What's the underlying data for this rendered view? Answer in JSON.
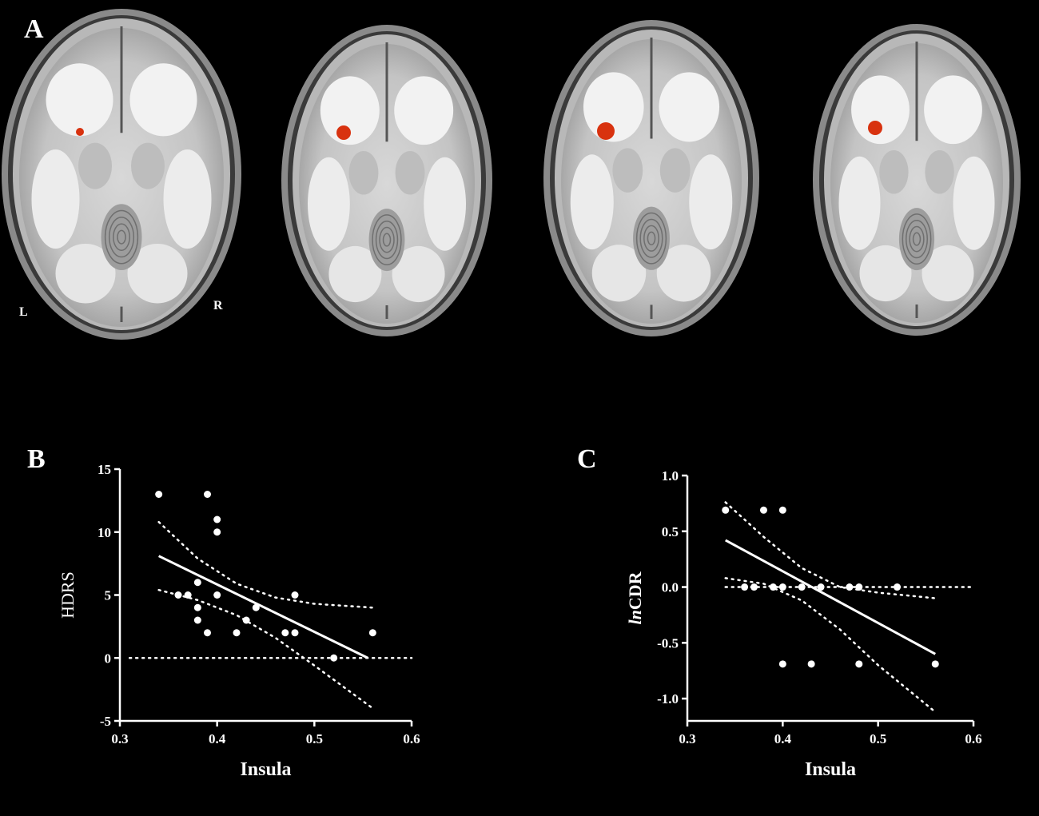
{
  "panels": {
    "a": "A",
    "b": "B",
    "c": "C"
  },
  "orientation": {
    "left": "L",
    "right": "R"
  },
  "brain_slices": {
    "count": 4,
    "colors": {
      "background": "#000000",
      "highlight": "#d8320f",
      "tissue": "#cfcfcf"
    }
  },
  "chart_data": [
    {
      "panel": "B",
      "type": "scatter",
      "xlabel": "Insula",
      "ylabel": "HDRS",
      "ylabel_italic": "",
      "xlim": [
        0.3,
        0.6
      ],
      "ylim": [
        -5,
        15
      ],
      "xticks": [
        0.3,
        0.4,
        0.5,
        0.6
      ],
      "xtick_labels": [
        "0.3",
        "0.4",
        "0.5",
        "0.6"
      ],
      "yticks": [
        -5,
        0,
        5,
        10,
        15
      ],
      "ytick_labels": [
        "-5",
        "0",
        "5",
        "10",
        "15"
      ],
      "points": [
        {
          "x": 0.34,
          "y": 13
        },
        {
          "x": 0.36,
          "y": 5
        },
        {
          "x": 0.37,
          "y": 5
        },
        {
          "x": 0.38,
          "y": 6
        },
        {
          "x": 0.38,
          "y": 4
        },
        {
          "x": 0.38,
          "y": 3
        },
        {
          "x": 0.39,
          "y": 2
        },
        {
          "x": 0.39,
          "y": 13
        },
        {
          "x": 0.4,
          "y": 11
        },
        {
          "x": 0.4,
          "y": 10
        },
        {
          "x": 0.4,
          "y": 5
        },
        {
          "x": 0.42,
          "y": 2
        },
        {
          "x": 0.43,
          "y": 3
        },
        {
          "x": 0.44,
          "y": 4
        },
        {
          "x": 0.47,
          "y": 2
        },
        {
          "x": 0.48,
          "y": 2
        },
        {
          "x": 0.48,
          "y": 5
        },
        {
          "x": 0.52,
          "y": 0
        },
        {
          "x": 0.56,
          "y": 2
        }
      ],
      "fit_line": {
        "x": [
          0.34,
          0.555
        ],
        "y": [
          8.1,
          0
        ]
      },
      "ci_upper": {
        "x": [
          0.34,
          0.38,
          0.42,
          0.46,
          0.5,
          0.56
        ],
        "y": [
          10.8,
          7.9,
          5.9,
          4.8,
          4.3,
          4.0
        ]
      },
      "ci_lower": {
        "x": [
          0.34,
          0.38,
          0.42,
          0.46,
          0.5,
          0.56
        ],
        "y": [
          5.4,
          4.6,
          3.4,
          1.6,
          -0.6,
          -4.0
        ]
      },
      "zero_line": {
        "x": [
          0.31,
          0.6
        ],
        "y": [
          0,
          0
        ]
      },
      "grid": false,
      "colors": {
        "points": "#ffffff",
        "line": "#ffffff",
        "axes": "#ffffff"
      }
    },
    {
      "panel": "C",
      "type": "scatter",
      "xlabel": "Insula",
      "ylabel": "CDR",
      "ylabel_italic": "ln",
      "xlim": [
        0.3,
        0.6
      ],
      "ylim": [
        -1.2,
        1.0
      ],
      "xticks": [
        0.3,
        0.4,
        0.5,
        0.6
      ],
      "xtick_labels": [
        "0.3",
        "0.4",
        "0.5",
        "0.6"
      ],
      "yticks": [
        -1.0,
        -0.5,
        0.0,
        0.5,
        1.0
      ],
      "ytick_labels": [
        "-1.0",
        "-0.5",
        "0.0",
        "0.5",
        "1.0"
      ],
      "points": [
        {
          "x": 0.34,
          "y": 0.69
        },
        {
          "x": 0.38,
          "y": 0.69
        },
        {
          "x": 0.4,
          "y": 0.69
        },
        {
          "x": 0.36,
          "y": 0
        },
        {
          "x": 0.37,
          "y": 0
        },
        {
          "x": 0.39,
          "y": 0
        },
        {
          "x": 0.4,
          "y": 0
        },
        {
          "x": 0.42,
          "y": 0
        },
        {
          "x": 0.44,
          "y": 0
        },
        {
          "x": 0.47,
          "y": 0
        },
        {
          "x": 0.48,
          "y": 0
        },
        {
          "x": 0.52,
          "y": 0
        },
        {
          "x": 0.4,
          "y": -0.69
        },
        {
          "x": 0.43,
          "y": -0.69
        },
        {
          "x": 0.48,
          "y": -0.69
        },
        {
          "x": 0.56,
          "y": -0.69
        }
      ],
      "fit_line": {
        "x": [
          0.34,
          0.56
        ],
        "y": [
          0.42,
          -0.6
        ]
      },
      "ci_upper": {
        "x": [
          0.34,
          0.38,
          0.42,
          0.46,
          0.5,
          0.56
        ],
        "y": [
          0.76,
          0.45,
          0.17,
          0.0,
          -0.05,
          -0.1
        ]
      },
      "ci_lower": {
        "x": [
          0.34,
          0.38,
          0.42,
          0.46,
          0.5,
          0.56
        ],
        "y": [
          0.08,
          0.03,
          -0.12,
          -0.38,
          -0.7,
          -1.12
        ]
      },
      "zero_line": {
        "x": [
          0.34,
          0.6
        ],
        "y": [
          0,
          0
        ]
      },
      "grid": false,
      "colors": {
        "points": "#ffffff",
        "line": "#ffffff",
        "axes": "#ffffff"
      }
    }
  ]
}
